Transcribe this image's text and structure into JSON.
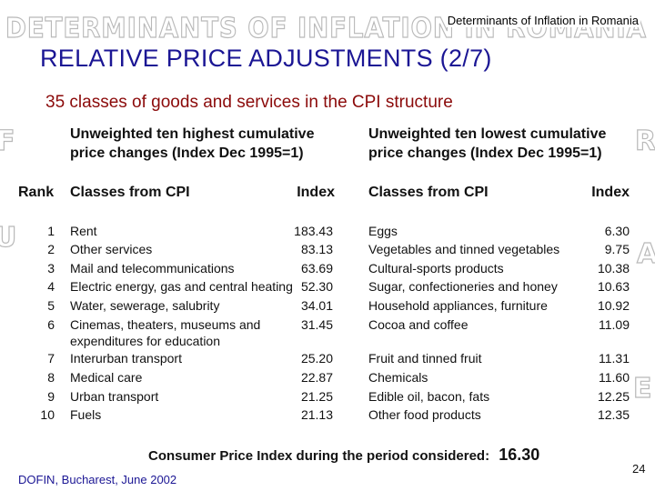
{
  "header": {
    "watermark": "DETERMINANTS OF INFLATION IN ROMANIA",
    "subtitle": "Determinants of Inflation in Romania"
  },
  "slide": {
    "title": "RELATIVE PRICE ADJUSTMENTS (2/7)",
    "subtitle": "35 classes of goods and services in the CPI structure"
  },
  "table": {
    "highest_caption_line1": "Unweighted ten highest cumulative",
    "highest_caption_line2": "price changes (Index Dec 1995=1)",
    "lowest_caption_line1": "Unweighted ten lowest cumulative",
    "lowest_caption_line2": "price changes (Index Dec 1995=1)",
    "headers": {
      "rank": "Rank",
      "highest_class": "Classes from CPI",
      "highest_index": "Index",
      "lowest_class": "Classes from CPI",
      "lowest_index": "Index"
    },
    "rows": [
      {
        "rank": "1",
        "highest_class": "Rent",
        "highest_index": "183.43",
        "lowest_class": "Eggs",
        "lowest_index": "6.30"
      },
      {
        "rank": "2",
        "highest_class": "Other services",
        "highest_index": "83.13",
        "lowest_class": "Vegetables and tinned vegetables",
        "lowest_index": "9.75"
      },
      {
        "rank": "3",
        "highest_class": "Mail and telecommunications",
        "highest_index": "63.69",
        "lowest_class": "Cultural-sports products",
        "lowest_index": "10.38"
      },
      {
        "rank": "4",
        "highest_class": "Electric energy, gas and central heating",
        "highest_index": "52.30",
        "lowest_class": "Sugar, confectioneries and honey",
        "lowest_index": "10.63"
      },
      {
        "rank": "5",
        "highest_class": "Water, sewerage, salubrity",
        "highest_index": "34.01",
        "lowest_class": "Household appliances, furniture",
        "lowest_index": "10.92"
      },
      {
        "rank": "6",
        "highest_class": "Cinemas, theaters, museums and",
        "highest_class_line2": "expenditures for education",
        "highest_index": "31.45",
        "lowest_class": "Cocoa and coffee",
        "lowest_index": "11.09"
      },
      {
        "rank": "7",
        "highest_class": "Interurban transport",
        "highest_index": "25.20",
        "lowest_class": "Fruit and tinned fruit",
        "lowest_index": "11.31"
      },
      {
        "rank": "8",
        "highest_class": "Medical care",
        "highest_index": "22.87",
        "lowest_class": "Chemicals",
        "lowest_index": "11.60"
      },
      {
        "rank": "9",
        "highest_class": "Urban transport",
        "highest_index": "21.25",
        "lowest_class": "Edible oil, bacon, fats",
        "lowest_index": "12.25"
      },
      {
        "rank": "10",
        "highest_class": "Fuels",
        "highest_index": "21.13",
        "lowest_class": "Other food products",
        "lowest_index": "12.35"
      }
    ]
  },
  "cpi_note": {
    "label": "Consumer Price Index  during the period considered:",
    "value": "16.30"
  },
  "footer": {
    "left": "DOFIN, Bucharest, June 2002",
    "page_number": "24"
  }
}
